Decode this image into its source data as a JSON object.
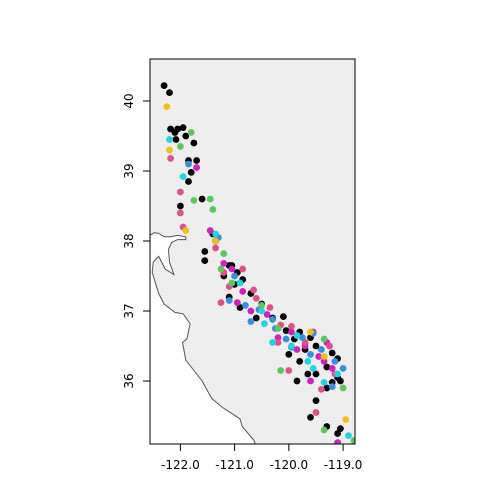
{
  "chart_data": {
    "type": "scatter",
    "title": "",
    "xlabel": "",
    "ylabel": "",
    "xlim": [
      -122.56,
      -118.78
    ],
    "ylim": [
      35.1,
      40.6
    ],
    "x_ticks": [
      -122.0,
      -121.0,
      -120.0,
      -119.0
    ],
    "y_ticks": [
      36,
      37,
      38,
      39,
      40
    ],
    "x_tick_labels": [
      "-122.0",
      "-121.0",
      "-120.0",
      "-119.0"
    ],
    "y_tick_labels": [
      "36",
      "37",
      "38",
      "39",
      "40"
    ],
    "grid": false,
    "legend": "none",
    "background": "#f0f0f0",
    "coastline_color": "#555555",
    "point_colors": {
      "black": "#000000",
      "magenta": "#d21fc0",
      "pink": "#e0508a",
      "blue": "#3590e0",
      "cyan": "#22d2e6",
      "green": "#5cc85c",
      "yellow": "#f0c018"
    },
    "coastline": [
      [
        -122.56,
        38.08
      ],
      [
        -122.48,
        38.12
      ],
      [
        -122.4,
        38.11
      ],
      [
        -122.3,
        38.06
      ],
      [
        -122.18,
        38.06
      ],
      [
        -122.05,
        38.08
      ],
      [
        -121.9,
        38.06
      ],
      [
        -121.9,
        38.02
      ],
      [
        -122.05,
        38.02
      ],
      [
        -122.16,
        37.98
      ],
      [
        -122.22,
        37.88
      ],
      [
        -122.2,
        37.7
      ],
      [
        -122.12,
        37.52
      ],
      [
        -122.28,
        37.6
      ],
      [
        -122.4,
        37.78
      ],
      [
        -122.5,
        37.7
      ],
      [
        -122.52,
        37.55
      ],
      [
        -122.4,
        37.25
      ],
      [
        -122.3,
        37.1
      ],
      [
        -122.1,
        36.98
      ],
      [
        -121.95,
        36.96
      ],
      [
        -121.82,
        36.82
      ],
      [
        -121.88,
        36.6
      ],
      [
        -121.96,
        36.55
      ],
      [
        -121.9,
        36.3
      ],
      [
        -121.6,
        36.0
      ],
      [
        -121.42,
        35.75
      ],
      [
        -121.22,
        35.62
      ],
      [
        -120.9,
        35.46
      ],
      [
        -120.86,
        35.35
      ],
      [
        -120.64,
        35.15
      ],
      [
        -120.62,
        35.1
      ]
    ],
    "series": [
      {
        "color": "black",
        "points": [
          [
            -122.3,
            40.22
          ],
          [
            -122.2,
            40.12
          ],
          [
            -122.18,
            39.6
          ],
          [
            -122.1,
            39.55
          ],
          [
            -122.05,
            39.6
          ],
          [
            -121.95,
            39.62
          ],
          [
            -121.9,
            39.5
          ],
          [
            -122.08,
            39.45
          ],
          [
            -121.75,
            39.4
          ],
          [
            -121.85,
            39.15
          ],
          [
            -121.7,
            39.15
          ],
          [
            -121.8,
            38.98
          ],
          [
            -121.85,
            38.85
          ],
          [
            -121.6,
            38.6
          ],
          [
            -122.0,
            38.5
          ],
          [
            -121.4,
            38.1
          ],
          [
            -121.35,
            38.0
          ],
          [
            -121.55,
            37.85
          ],
          [
            -121.55,
            37.72
          ],
          [
            -121.1,
            37.65
          ],
          [
            -120.95,
            37.55
          ],
          [
            -121.2,
            37.5
          ],
          [
            -121.0,
            37.38
          ],
          [
            -121.1,
            37.2
          ],
          [
            -120.7,
            37.25
          ],
          [
            -120.9,
            37.05
          ],
          [
            -120.5,
            37.1
          ],
          [
            -120.6,
            36.9
          ],
          [
            -120.3,
            36.9
          ],
          [
            -120.1,
            36.92
          ],
          [
            -120.05,
            36.72
          ],
          [
            -119.9,
            36.6
          ],
          [
            -119.8,
            36.7
          ],
          [
            -119.6,
            36.62
          ],
          [
            -119.7,
            36.45
          ],
          [
            -119.5,
            36.5
          ],
          [
            -119.2,
            36.4
          ],
          [
            -119.1,
            36.32
          ],
          [
            -119.3,
            36.2
          ],
          [
            -119.5,
            36.1
          ],
          [
            -119.1,
            36.05
          ],
          [
            -119.2,
            35.98
          ],
          [
            -119.05,
            36.0
          ],
          [
            -119.5,
            35.72
          ],
          [
            -119.6,
            35.48
          ],
          [
            -119.3,
            35.35
          ],
          [
            -119.05,
            35.32
          ],
          [
            -119.1,
            35.25
          ],
          [
            -119.8,
            36.28
          ],
          [
            -120.0,
            36.38
          ],
          [
            -119.85,
            36.0
          ],
          [
            -119.65,
            36.1
          ],
          [
            -119.3,
            35.9
          ],
          [
            -121.05,
            37.65
          ],
          [
            -120.85,
            37.45
          ]
        ]
      },
      {
        "color": "magenta",
        "points": [
          [
            -121.7,
            39.05
          ],
          [
            -121.45,
            38.15
          ],
          [
            -121.05,
            37.6
          ],
          [
            -120.85,
            37.28
          ],
          [
            -120.4,
            36.95
          ],
          [
            -119.95,
            36.7
          ],
          [
            -119.7,
            36.5
          ],
          [
            -119.45,
            36.35
          ],
          [
            -119.2,
            36.18
          ],
          [
            -119.35,
            36.28
          ],
          [
            -119.6,
            36.0
          ],
          [
            -119.1,
            35.12
          ],
          [
            -120.7,
            37.0
          ],
          [
            -121.2,
            37.68
          ],
          [
            -119.85,
            36.45
          ],
          [
            -120.2,
            36.62
          ],
          [
            -119.55,
            36.7
          ],
          [
            -119.3,
            36.55
          ],
          [
            -120.95,
            37.12
          ]
        ]
      },
      {
        "color": "pink",
        "points": [
          [
            -122.18,
            39.18
          ],
          [
            -122.0,
            38.7
          ],
          [
            -122.0,
            38.4
          ],
          [
            -121.95,
            38.2
          ],
          [
            -121.35,
            37.9
          ],
          [
            -121.2,
            37.55
          ],
          [
            -121.1,
            37.35
          ],
          [
            -120.65,
            37.3
          ],
          [
            -120.35,
            37.05
          ],
          [
            -120.15,
            36.8
          ],
          [
            -119.95,
            36.78
          ],
          [
            -119.7,
            36.55
          ],
          [
            -119.25,
            36.5
          ],
          [
            -119.4,
            35.88
          ],
          [
            -119.5,
            35.55
          ],
          [
            -120.0,
            36.15
          ],
          [
            -120.6,
            37.18
          ],
          [
            -120.2,
            36.55
          ],
          [
            -119.15,
            36.1
          ],
          [
            -120.85,
            37.6
          ],
          [
            -121.25,
            37.12
          ]
        ]
      },
      {
        "color": "blue",
        "points": [
          [
            -121.85,
            39.1
          ],
          [
            -121.3,
            38.05
          ],
          [
            -121.1,
            37.15
          ],
          [
            -120.8,
            37.08
          ],
          [
            -120.55,
            37.02
          ],
          [
            -120.7,
            36.85
          ],
          [
            -120.25,
            36.75
          ],
          [
            -120.05,
            36.6
          ],
          [
            -119.75,
            36.62
          ],
          [
            -119.6,
            36.38
          ],
          [
            -119.4,
            36.45
          ],
          [
            -119.15,
            36.28
          ],
          [
            -119.0,
            36.18
          ],
          [
            -119.55,
            36.68
          ],
          [
            -121.0,
            37.5
          ],
          [
            -120.3,
            36.88
          ],
          [
            -119.95,
            36.48
          ],
          [
            -119.2,
            35.92
          ]
        ]
      },
      {
        "color": "cyan",
        "points": [
          [
            -122.2,
            39.45
          ],
          [
            -121.95,
            38.92
          ],
          [
            -120.9,
            37.4
          ],
          [
            -120.5,
            37.0
          ],
          [
            -120.3,
            36.55
          ],
          [
            -119.95,
            36.5
          ],
          [
            -119.65,
            36.28
          ],
          [
            -119.55,
            36.18
          ],
          [
            -119.1,
            36.1
          ],
          [
            -119.35,
            35.98
          ],
          [
            -118.9,
            35.22
          ],
          [
            -121.35,
            38.1
          ],
          [
            -120.45,
            36.82
          ],
          [
            -119.85,
            36.65
          ]
        ]
      },
      {
        "color": "green",
        "points": [
          [
            -121.8,
            39.55
          ],
          [
            -122.0,
            39.35
          ],
          [
            -121.75,
            38.58
          ],
          [
            -121.4,
            38.45
          ],
          [
            -121.2,
            37.82
          ],
          [
            -121.25,
            37.6
          ],
          [
            -120.5,
            37.08
          ],
          [
            -120.15,
            36.15
          ],
          [
            -119.35,
            36.6
          ],
          [
            -119.0,
            35.9
          ],
          [
            -119.35,
            35.3
          ],
          [
            -118.8,
            35.15
          ],
          [
            -121.45,
            38.6
          ],
          [
            -121.05,
            37.4
          ],
          [
            -120.2,
            36.75
          ]
        ]
      },
      {
        "color": "yellow",
        "points": [
          [
            -122.25,
            39.92
          ],
          [
            -122.2,
            39.3
          ],
          [
            -121.9,
            38.15
          ],
          [
            -121.35,
            38.0
          ],
          [
            -119.6,
            36.7
          ],
          [
            -119.35,
            36.35
          ],
          [
            -118.95,
            35.45
          ]
        ]
      }
    ]
  }
}
